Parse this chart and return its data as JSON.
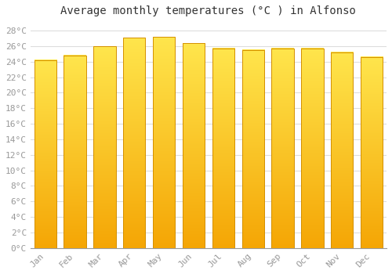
{
  "title": "Average monthly temperatures (°C ) in Alfonso",
  "months": [
    "Jan",
    "Feb",
    "Mar",
    "Apr",
    "May",
    "Jun",
    "Jul",
    "Aug",
    "Sep",
    "Oct",
    "Nov",
    "Dec"
  ],
  "temperatures": [
    24.2,
    24.8,
    26.0,
    27.1,
    27.2,
    26.4,
    25.7,
    25.5,
    25.7,
    25.7,
    25.2,
    24.6
  ],
  "bar_color_top": "#F5A800",
  "bar_color_bottom": "#FFE060",
  "bar_edge_color": "#D49000",
  "background_color": "#ffffff",
  "grid_color": "#dddddd",
  "ytick_labels": [
    "0°C",
    "2°C",
    "4°C",
    "6°C",
    "8°C",
    "10°C",
    "12°C",
    "14°C",
    "16°C",
    "18°C",
    "20°C",
    "22°C",
    "24°C",
    "26°C",
    "28°C"
  ],
  "ytick_values": [
    0,
    2,
    4,
    6,
    8,
    10,
    12,
    14,
    16,
    18,
    20,
    22,
    24,
    26,
    28
  ],
  "ylim": [
    0,
    29
  ],
  "title_fontsize": 10,
  "tick_fontsize": 8,
  "tick_color": "#999999",
  "title_color": "#333333",
  "title_font_family": "monospace",
  "tick_font_family": "monospace"
}
